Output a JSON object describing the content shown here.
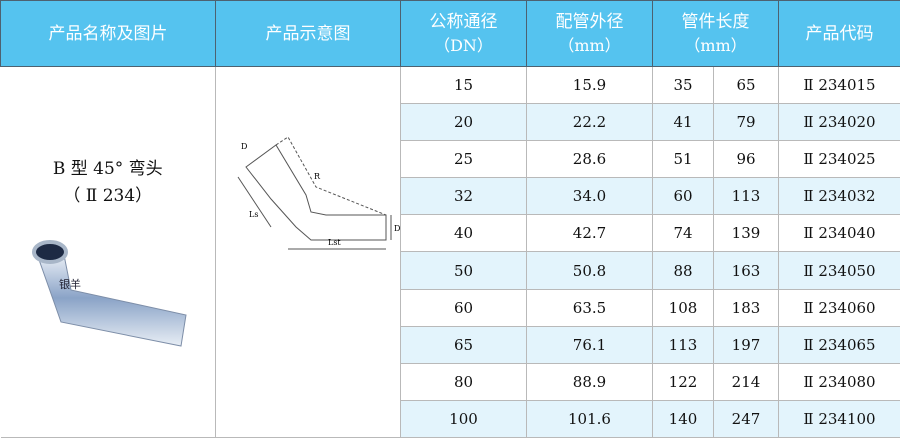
{
  "header": {
    "col1": "产品名称及图片",
    "col2": "产品示意图",
    "col3": "公称通径",
    "col3_unit": "（DN）",
    "col4": "配管外径",
    "col4_unit": "（mm）",
    "col5": "管件长度",
    "col5_unit": "（mm）",
    "col6": "产品代码"
  },
  "product": {
    "name": "B 型 45°  弯头",
    "code": "（ Ⅱ 234）",
    "photo_label": "银羊",
    "diagram_labels": [
      "D",
      "R",
      "Ls",
      "Lst",
      "D"
    ]
  },
  "rows": [
    {
      "dn": "15",
      "od": "15.9",
      "l1": "35",
      "l2": "65",
      "code": "Ⅱ 234015"
    },
    {
      "dn": "20",
      "od": "22.2",
      "l1": "41",
      "l2": "79",
      "code": "Ⅱ 234020"
    },
    {
      "dn": "25",
      "od": "28.6",
      "l1": "51",
      "l2": "96",
      "code": "Ⅱ 234025"
    },
    {
      "dn": "32",
      "od": "34.0",
      "l1": "60",
      "l2": "113",
      "code": "Ⅱ 234032"
    },
    {
      "dn": "40",
      "od": "42.7",
      "l1": "74",
      "l2": "139",
      "code": "Ⅱ 234040"
    },
    {
      "dn": "50",
      "od": "50.8",
      "l1": "88",
      "l2": "163",
      "code": "Ⅱ 234050"
    },
    {
      "dn": "60",
      "od": "63.5",
      "l1": "108",
      "l2": "183",
      "code": "Ⅱ 234060"
    },
    {
      "dn": "65",
      "od": "76.1",
      "l1": "113",
      "l2": "197",
      "code": "Ⅱ 234065"
    },
    {
      "dn": "80",
      "od": "88.9",
      "l1": "122",
      "l2": "214",
      "code": "Ⅱ 234080"
    },
    {
      "dn": "100",
      "od": "101.6",
      "l1": "140",
      "l2": "247",
      "code": "Ⅱ 234100"
    }
  ],
  "colors": {
    "header_bg": "#55c3ef",
    "alt_row": "#e3f4fc"
  }
}
